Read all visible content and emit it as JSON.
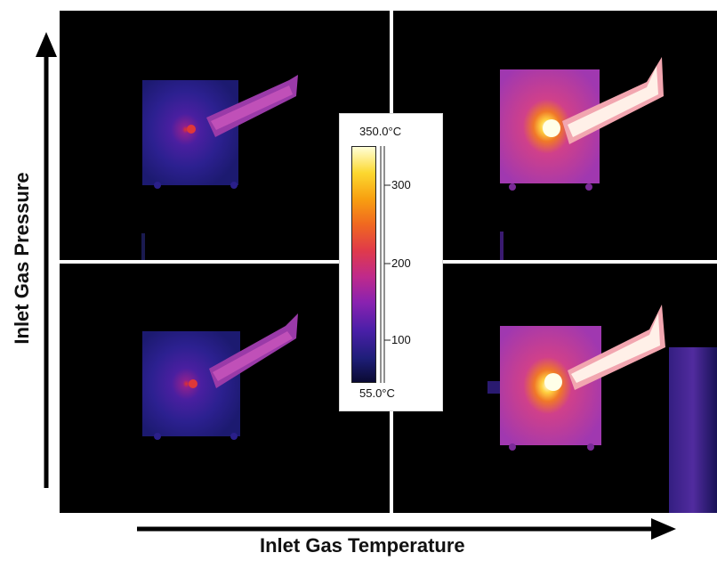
{
  "axes": {
    "y_label": "Inlet Gas Pressure",
    "x_label": "Inlet Gas Temperature"
  },
  "colorbar": {
    "max_label": "350.0°C",
    "min_label": "55.0°C",
    "ticks": [
      "300",
      "200",
      "100"
    ]
  },
  "panels": [
    {
      "position": "top-left",
      "hotspot_color": "#d83030",
      "body_color": "#2a1f8a",
      "pipe_color": "#c048b0"
    },
    {
      "position": "top-right",
      "hotspot_color": "#ffffe0",
      "body_color": "#b040b0",
      "pipe_color": "#ffd8d0"
    },
    {
      "position": "bottom-left",
      "hotspot_color": "#d83030",
      "body_color": "#2a1f8a",
      "pipe_color": "#c048b0"
    },
    {
      "position": "bottom-right",
      "hotspot_color": "#ffffe0",
      "body_color": "#b040b0",
      "pipe_color": "#ffd8d0"
    }
  ]
}
